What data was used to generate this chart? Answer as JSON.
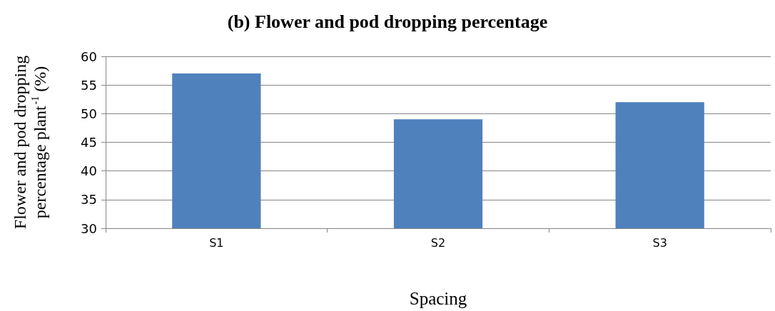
{
  "chart_data": {
    "type": "bar",
    "title": "(b) Flower and pod dropping percentage",
    "xlabel": "Spacing",
    "ylabel": "Flower and pod dropping percentage plant$^{-1}$ (%)",
    "categories": [
      "S1",
      "S2",
      "S3"
    ],
    "values": [
      57,
      49,
      52
    ],
    "color": "#4f81bd",
    "ylim": [
      30,
      60
    ],
    "yticks": [
      30,
      35,
      40,
      45,
      50,
      55,
      60
    ],
    "grid": "y"
  }
}
